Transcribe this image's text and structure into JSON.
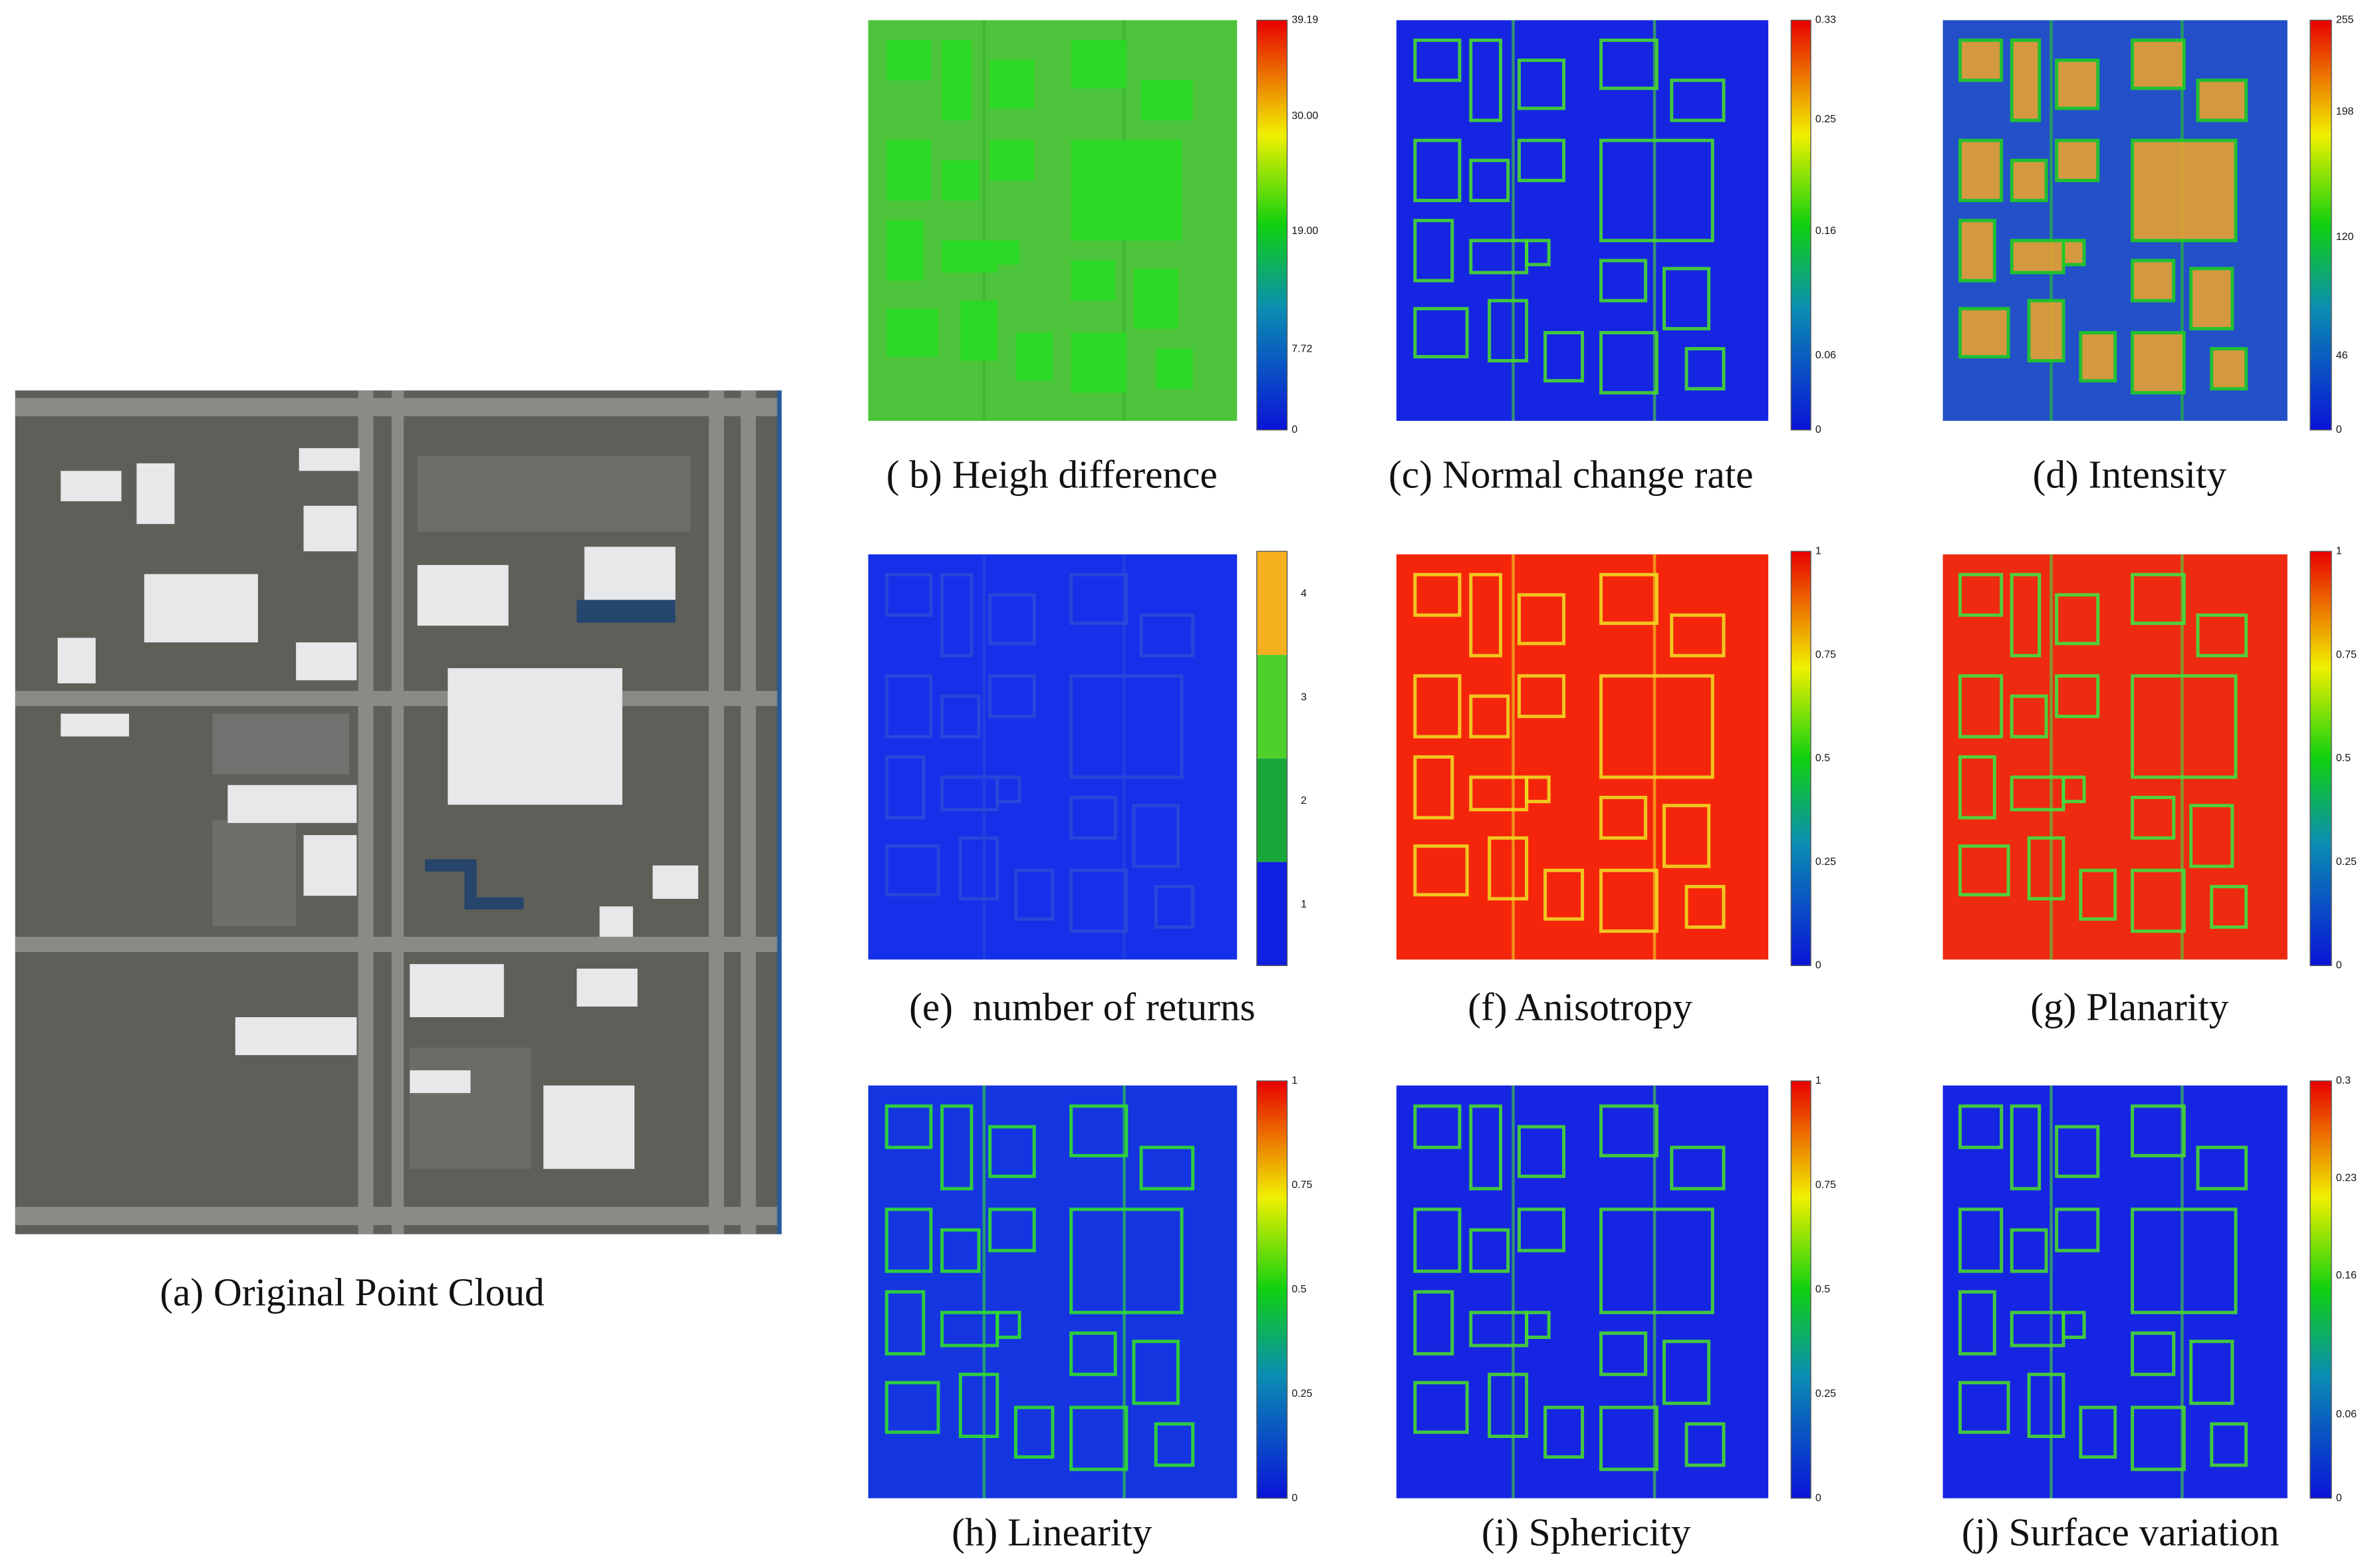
{
  "panels": [
    {
      "caption": "(a) Original Point Cloud"
    },
    {
      "caption": "( b) Heigh difference",
      "colorbar": {
        "ticks": [
          39.19,
          {
            "value": 30,
            "label": "30.00"
          },
          {
            "value": 19,
            "label": "19.00"
          },
          7.72,
          0
        ]
      }
    },
    {
      "caption": "(c) Normal change rate",
      "colorbar": {
        "ticks": [
          0.33,
          0.25,
          0.16,
          0.06,
          0
        ]
      }
    },
    {
      "caption": "(d) Intensity",
      "colorbar": {
        "ticks": [
          255,
          198,
          120,
          46,
          0
        ]
      }
    },
    {
      "caption": "(e)  number of returns",
      "colorbar": {
        "scale": "discrete",
        "ticks": [
          4,
          3,
          2,
          1
        ]
      }
    },
    {
      "caption": "(f) Anisotropy",
      "colorbar": {
        "ticks": [
          1,
          0.75,
          0.5,
          0.25,
          0
        ]
      }
    },
    {
      "caption": "(g) Planarity",
      "colorbar": {
        "ticks": [
          1,
          0.75,
          0.5,
          0.25,
          0
        ]
      }
    },
    {
      "caption": "(h) Linearity",
      "colorbar": {
        "ticks": [
          1,
          0.75,
          0.5,
          0.25,
          0
        ]
      }
    },
    {
      "caption": "(i) Sphericity",
      "colorbar": {
        "ticks": [
          1,
          0.75,
          0.5,
          0.25,
          0
        ]
      }
    },
    {
      "caption": "(j) Surface variation",
      "colorbar": {
        "ticks": [
          0.3,
          0.23,
          0.16,
          0.06,
          0
        ]
      }
    }
  ]
}
